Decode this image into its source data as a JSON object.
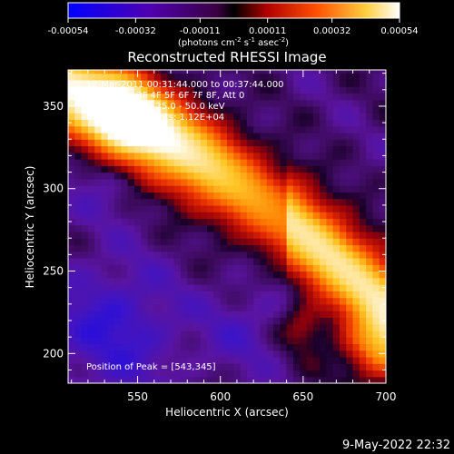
{
  "colorbar": {
    "ticks": [
      "-0.00054",
      "-0.00032",
      "-0.00011",
      "0.00011",
      "0.00032",
      "0.00054"
    ],
    "units_pre": "(photons cm",
    "units_exp1": "-2",
    "units_mid": " s",
    "units_exp2": "-1",
    "units_post": " asec",
    "units_exp3": "-2",
    "units_close": ")"
  },
  "title": "Reconstructed RHESSI Image",
  "annotations": {
    "time_range": "12-Mar-2011 00:31:44.000 to 00:37:44.000",
    "detectors": "Detectors: 3F 4F 5F 6F 7F 8F, Att 0",
    "energy": "Energy Range: 25.0 - 50.0 keV",
    "counts": "Image Total Counts: 1.12E+04",
    "peak": "Position of Peak = [543,345]"
  },
  "footer_timestamp": "9-May-2022 22:32",
  "chart_data": {
    "type": "heatmap",
    "title": "Reconstructed RHESSI Image",
    "xlabel": "Heliocentric X (arcsec)",
    "ylabel": "Heliocentric Y (arcsec)",
    "xlim": [
      508,
      700
    ],
    "ylim": [
      182,
      372
    ],
    "xticks": [
      550,
      600,
      650,
      700
    ],
    "yticks": [
      200,
      250,
      300,
      350
    ],
    "colorscale_range": [
      -0.00054,
      0.00054
    ],
    "colormap": "blue-purple-red-yellow-white",
    "peak_position": [
      543,
      345
    ],
    "grid": false,
    "features": [
      {
        "kind": "bright_band",
        "from": [
          510,
          360
        ],
        "to": [
          700,
          230
        ],
        "peak_value": 0.00054
      },
      {
        "kind": "negative_region",
        "center": [
          535,
          215
        ],
        "min_value": -0.0004
      }
    ]
  }
}
